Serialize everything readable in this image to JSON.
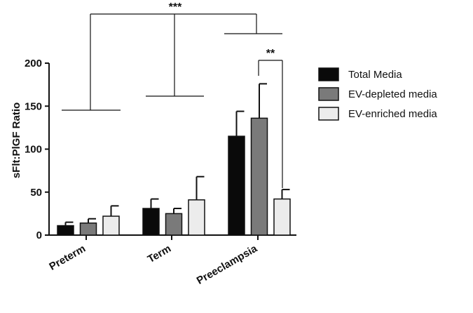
{
  "chart_data": {
    "type": "bar",
    "ylabel": "sFlt:PlGF Ratio",
    "ylim": [
      0,
      200
    ],
    "yticks": [
      0,
      50,
      100,
      150,
      200
    ],
    "categories": [
      "Preterm",
      "Term",
      "Preeclampsia"
    ],
    "series": [
      {
        "name": "Total Media",
        "color": "#0a0a0a",
        "values": [
          11,
          31,
          115
        ],
        "errors": [
          4,
          11,
          29
        ]
      },
      {
        "name": "EV-depleted media",
        "color": "#7a7a7a",
        "values": [
          14,
          25,
          136
        ],
        "errors": [
          5,
          6,
          40
        ]
      },
      {
        "name": "EV-enriched media",
        "color": "#ececec",
        "values": [
          22,
          41,
          42
        ],
        "errors": [
          12,
          27,
          11
        ]
      }
    ],
    "legend_position": "right",
    "annotations": [
      {
        "label": "***",
        "between": "Preterm, Term, Preeclampsia"
      },
      {
        "label": "**",
        "between": "Preeclampsia EV-depleted media vs EV-enriched media"
      }
    ]
  }
}
